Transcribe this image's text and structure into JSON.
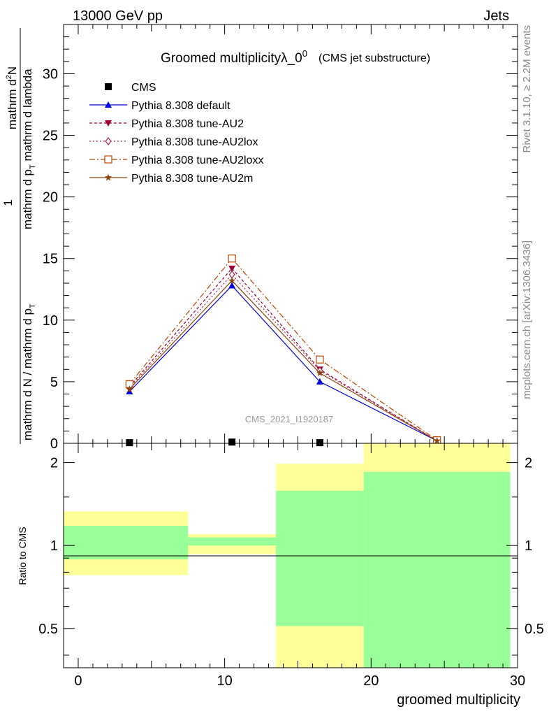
{
  "header": {
    "left": "13000 GeV pp",
    "right": "Jets"
  },
  "side": {
    "rivet": "Rivet 3.1.10, ≥ 2.2M events",
    "mcplots": "mcplots.cern.ch [arXiv:1306.3436]"
  },
  "watermark": "CMS_2021_I1920187",
  "chart_data": [
    {
      "type": "line",
      "title": "Groomed multiplicityλ_0",
      "title_sup": "0",
      "subtitle": "(CMS jet substructure)",
      "ylabel_num": "1",
      "ylabel_den": "mathrm d N / mathrm d p",
      "ylabel_den_sub": "T",
      "ylabel_num_b": "mathrm d",
      "ylabel_num_b_sup": "2",
      "ylabel_num_c": "N",
      "ylabel_den_b": "mathrm d p",
      "ylabel_den_b_sub": "T",
      "ylabel_den_c": " mathrm d lambda",
      "xlim": [
        -1,
        30
      ],
      "ylim": [
        0,
        34
      ],
      "yticks": [
        5,
        10,
        15,
        20,
        25,
        30
      ],
      "ytick_labels": [
        "5",
        "10",
        "15",
        "20",
        "25",
        "30"
      ],
      "y_zero_label": "0",
      "x_edges": [
        -1,
        7.5,
        13.5,
        19.5,
        29.5
      ],
      "x": [
        3.5,
        10.5,
        16.5,
        24.5
      ],
      "legend_placement": "top-left",
      "series": [
        {
          "name": "CMS",
          "color": "#000000",
          "marker": "square",
          "values": [
            0.05,
            0.1,
            0.05,
            0.05
          ]
        },
        {
          "name": "Pythia 8.308 default",
          "color": "#0000dd",
          "marker": "triangle-up",
          "dash": "",
          "values": [
            4.2,
            12.8,
            5.0,
            0.2
          ]
        },
        {
          "name": "Pythia 8.308 tune-AU2",
          "color": "#990033",
          "marker": "triangle-down",
          "dash": "4,3",
          "values": [
            4.6,
            14.2,
            6.0,
            0.2
          ]
        },
        {
          "name": "Pythia 8.308 tune-AU2lox",
          "color": "#aa2244",
          "marker": "diamond",
          "dash": "2,3",
          "values": [
            4.5,
            13.7,
            5.9,
            0.2
          ]
        },
        {
          "name": "Pythia 8.308 tune-AU2loxx",
          "color": "#bb4400",
          "marker": "square-open",
          "dash": "8,3,2,3",
          "values": [
            4.8,
            15.0,
            6.8,
            0.25
          ]
        },
        {
          "name": "Pythia 8.308 tune-AU2m",
          "color": "#8b4513",
          "marker": "star",
          "dash": "",
          "values": [
            4.4,
            13.2,
            5.7,
            0.2
          ]
        }
      ]
    },
    {
      "type": "area",
      "ylabel": "Ratio to CMS",
      "xlabel": "groomed multiplicity",
      "xlim": [
        -1,
        30
      ],
      "ylim": [
        0.36,
        2.35
      ],
      "yscale": "log",
      "xticks": [
        0,
        10,
        20,
        30
      ],
      "xtick_labels": [
        "0",
        "10",
        "20",
        "30"
      ],
      "yticks": [
        0.5,
        1,
        2
      ],
      "ytick_labels": [
        "0.5",
        "1",
        "2"
      ],
      "x_edges": [
        -1,
        7.5,
        13.5,
        19.5,
        29.5
      ],
      "band_outer": [
        [
          0.78,
          1.33
        ],
        [
          0.93,
          1.1
        ],
        [
          0.36,
          1.98
        ],
        [
          0.36,
          2.35
        ]
      ],
      "band_inner": [
        [
          0.89,
          1.18
        ],
        [
          1.0,
          1.07
        ],
        [
          0.51,
          1.58
        ],
        [
          0.36,
          1.85
        ]
      ],
      "band_outer_color": "#ffff99",
      "band_inner_color": "#99ff99",
      "reference": 1
    }
  ]
}
